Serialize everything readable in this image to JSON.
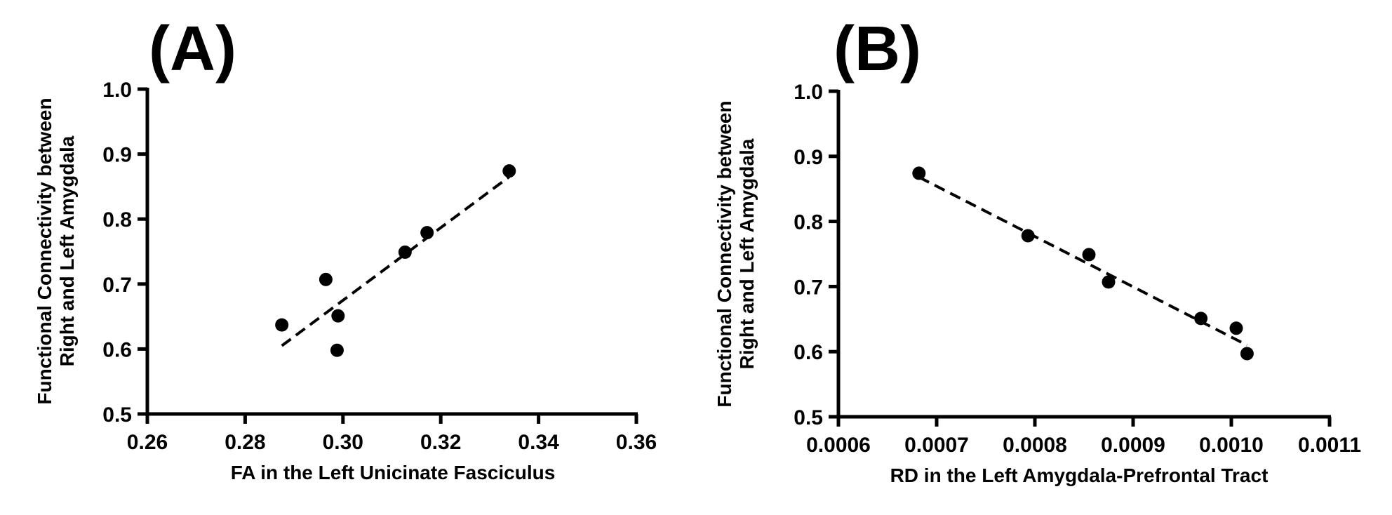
{
  "chart_data": [
    {
      "type": "scatter",
      "panel_label": "(A)",
      "xlabel": "FA in the Left Unicinate Fasciculus",
      "ylabel": [
        "Functional Connectivity between",
        "Right and Left Amygdala"
      ],
      "xlim": [
        0.26,
        0.36
      ],
      "ylim": [
        0.5,
        1.0
      ],
      "xticks": [
        "0.26",
        "0.28",
        "0.30",
        "0.32",
        "0.34",
        "0.36"
      ],
      "xtick_values": [
        0.26,
        0.28,
        0.3,
        0.32,
        0.34,
        0.36
      ],
      "yticks": [
        "0.5",
        "0.6",
        "0.7",
        "0.8",
        "0.9",
        "1.0"
      ],
      "ytick_values": [
        0.5,
        0.6,
        0.7,
        0.8,
        0.9,
        1.0
      ],
      "grid": false,
      "points": [
        {
          "x": 0.2875,
          "y": 0.637
        },
        {
          "x": 0.2965,
          "y": 0.707
        },
        {
          "x": 0.299,
          "y": 0.651
        },
        {
          "x": 0.2988,
          "y": 0.598
        },
        {
          "x": 0.3127,
          "y": 0.749
        },
        {
          "x": 0.3172,
          "y": 0.779
        },
        {
          "x": 0.334,
          "y": 0.874
        }
      ],
      "fit_line": {
        "x": [
          0.2875,
          0.334
        ],
        "y": [
          0.605,
          0.865
        ]
      }
    },
    {
      "type": "scatter",
      "panel_label": "(B)",
      "xlabel": "RD in the Left Amygdala-Prefrontal Tract",
      "ylabel": [
        "Functional Connectivity between",
        "Right and Left Amygdala"
      ],
      "xlim": [
        0.0006,
        0.0011
      ],
      "ylim": [
        0.5,
        1.0
      ],
      "xticks": [
        "0.0006",
        "0.0007",
        "0.0008",
        "0.0009",
        "0.0010",
        "0.0011"
      ],
      "xtick_values": [
        0.0006,
        0.0007,
        0.0008,
        0.0009,
        0.001,
        0.0011
      ],
      "yticks": [
        "0.5",
        "0.6",
        "0.7",
        "0.8",
        "0.9",
        "1.0"
      ],
      "ytick_values": [
        0.5,
        0.6,
        0.7,
        0.8,
        0.9,
        1.0
      ],
      "grid": false,
      "points": [
        {
          "x": 0.000682,
          "y": 0.874
        },
        {
          "x": 0.000793,
          "y": 0.778
        },
        {
          "x": 0.000855,
          "y": 0.749
        },
        {
          "x": 0.000875,
          "y": 0.707
        },
        {
          "x": 0.000969,
          "y": 0.651
        },
        {
          "x": 0.001005,
          "y": 0.636
        },
        {
          "x": 0.001016,
          "y": 0.597
        }
      ],
      "fit_line": {
        "x": [
          0.000682,
          0.001016
        ],
        "y": [
          0.868,
          0.61
        ]
      }
    }
  ]
}
